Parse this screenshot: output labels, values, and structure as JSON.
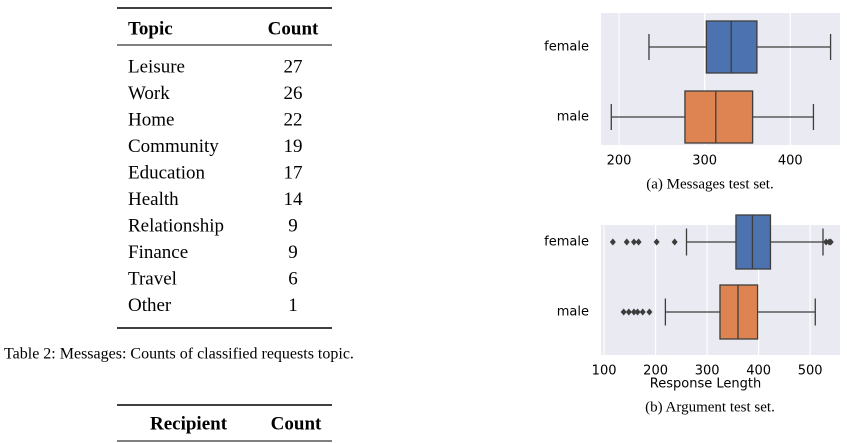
{
  "table": {
    "header": [
      "Topic",
      "Count"
    ],
    "rows": [
      [
        "Leisure",
        27
      ],
      [
        "Work",
        26
      ],
      [
        "Home",
        22
      ],
      [
        "Community",
        19
      ],
      [
        "Education",
        17
      ],
      [
        "Health",
        14
      ],
      [
        "Relationship",
        9
      ],
      [
        "Finance",
        9
      ],
      [
        "Travel",
        6
      ],
      [
        "Other",
        1
      ]
    ],
    "caption": "Table 2: Messages: Counts of classified requests topic."
  },
  "table_2": {
    "header": [
      "Recipient",
      "Count"
    ]
  },
  "chart_data": [
    {
      "type": "box",
      "caption": "(a) Messages test set.",
      "categories": [
        "female",
        "male"
      ],
      "colors": [
        "#4c72b0",
        "#dd8452"
      ],
      "background": "#eaeaf2",
      "grid": true,
      "boxes": [
        {
          "whislo": 235,
          "q1": 302,
          "med": 331,
          "q3": 361,
          "whishi": 447,
          "fliers": []
        },
        {
          "whislo": 191,
          "q1": 277,
          "med": 313,
          "q3": 356,
          "whishi": 427,
          "fliers": []
        }
      ],
      "xlim": [
        179,
        458
      ],
      "xticks": [
        200,
        300,
        400
      ]
    },
    {
      "type": "box",
      "caption": "(b) Argument test set.",
      "xlabel": "Response Length",
      "categories": [
        "female",
        "male"
      ],
      "colors": [
        "#4c72b0",
        "#dd8452"
      ],
      "background": "#eaeaf2",
      "grid": true,
      "boxes": [
        {
          "whislo": 260,
          "q1": 356,
          "med": 388,
          "q3": 423,
          "whishi": 525,
          "fliers": [
            117,
            144,
            158,
            167,
            202,
            237,
            531,
            537,
            540
          ]
        },
        {
          "whislo": 219,
          "q1": 325,
          "med": 360,
          "q3": 398,
          "whishi": 510,
          "fliers": [
            138,
            148,
            158,
            165,
            175,
            188
          ]
        }
      ],
      "xlim": [
        94,
        558
      ],
      "xticks": [
        100,
        200,
        300,
        400,
        500
      ]
    }
  ]
}
